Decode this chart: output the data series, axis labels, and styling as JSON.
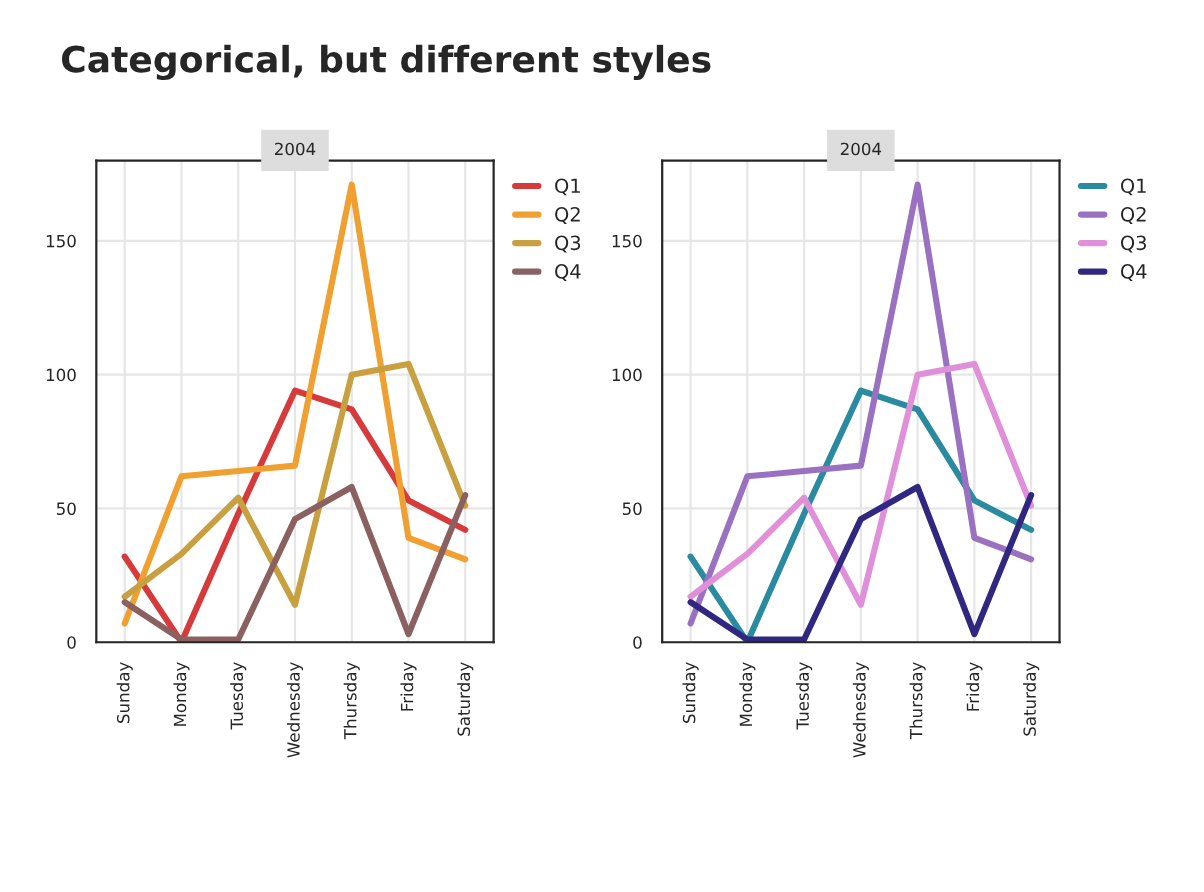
{
  "chart_data": [
    {
      "type": "line",
      "title": "2004",
      "annotations": [
        "Categorical, but different styles"
      ],
      "categories": [
        "Sunday",
        "Monday",
        "Tuesday",
        "Wednesday",
        "Thursday",
        "Friday",
        "Saturday"
      ],
      "ylim": [
        0,
        180
      ],
      "yticks": [
        0,
        50,
        100,
        150
      ],
      "grid": true,
      "legend": "top right",
      "series": [
        {
          "name": "Q1",
          "color": "#d63a3a",
          "values": [
            32,
            0,
            48,
            94,
            87,
            53,
            42
          ]
        },
        {
          "name": "Q2",
          "color": "#f0a030",
          "values": [
            7,
            62,
            64,
            66,
            171,
            39,
            31
          ]
        },
        {
          "name": "Q3",
          "color": "#c8a040",
          "values": [
            17,
            33,
            54,
            14,
            100,
            104,
            51
          ]
        },
        {
          "name": "Q4",
          "color": "#8a6060",
          "values": [
            15,
            1,
            1,
            46,
            58,
            3,
            55
          ]
        }
      ]
    },
    {
      "type": "line",
      "title": "2004",
      "categories": [
        "Sunday",
        "Monday",
        "Tuesday",
        "Wednesday",
        "Thursday",
        "Friday",
        "Saturday"
      ],
      "ylim": [
        0,
        180
      ],
      "yticks": [
        0,
        50,
        100,
        150
      ],
      "grid": true,
      "legend": "top right",
      "series": [
        {
          "name": "Q1",
          "color": "#2a8aa0",
          "values": [
            32,
            0,
            48,
            94,
            87,
            53,
            42
          ]
        },
        {
          "name": "Q2",
          "color": "#9a70c0",
          "values": [
            7,
            62,
            64,
            66,
            171,
            39,
            31
          ]
        },
        {
          "name": "Q3",
          "color": "#e090d8",
          "values": [
            17,
            33,
            54,
            14,
            100,
            104,
            51
          ]
        },
        {
          "name": "Q4",
          "color": "#302880",
          "values": [
            15,
            1,
            1,
            46,
            58,
            3,
            55
          ]
        }
      ]
    }
  ]
}
